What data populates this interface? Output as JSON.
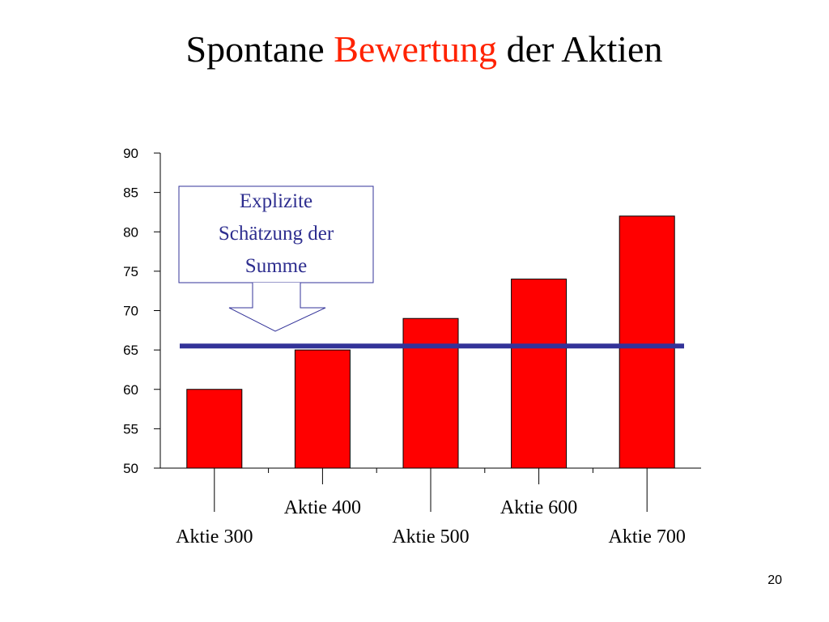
{
  "slide": {
    "title_parts": [
      "Spontane",
      "Bewertung",
      "der Aktien"
    ],
    "title_accent_color": "#ff2200",
    "page_number": "20"
  },
  "chart_data": {
    "type": "bar",
    "title": "",
    "xlabel": "",
    "ylabel": "",
    "categories": [
      "Aktie 300",
      "Aktie 400",
      "Aktie 500",
      "Aktie 600",
      "Aktie 700"
    ],
    "values": [
      60,
      65,
      69,
      74,
      82
    ],
    "ylim": [
      50,
      90
    ],
    "yticks": [
      50,
      55,
      60,
      65,
      70,
      75,
      80,
      85,
      90
    ],
    "bar_color": "#ff0000",
    "grid": false,
    "legend": "none",
    "reference_line": {
      "value": 65.5,
      "color": "#333399"
    },
    "annotation": {
      "lines": [
        "Explizite",
        "Schätzung der",
        "Summe"
      ],
      "color": "#333399"
    }
  }
}
